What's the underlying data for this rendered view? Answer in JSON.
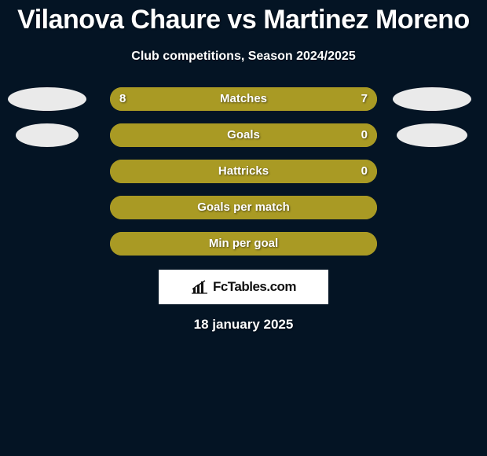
{
  "title": "Vilanova Chaure vs Martinez Moreno",
  "subtitle": "Club competitions, Season 2024/2025",
  "date": "18 january 2025",
  "logo_text": "FcTables.com",
  "colors": {
    "background": "#041424",
    "bar_fill": "#a99a24",
    "bar_track": "#a99a24",
    "ellipse_fill": "#eaeaea",
    "white": "#ffffff"
  },
  "rows": [
    {
      "label": "Matches",
      "left_value": "8",
      "right_value": "7",
      "left_pct": 53,
      "right_pct": 47,
      "show_values": true,
      "show_ellipses": true,
      "ellipse_left_w": 100,
      "ellipse_right_w": 100,
      "track_color": "#a99a24",
      "left_fill_color": "#a99a24",
      "right_fill_color": "#a99a24"
    },
    {
      "label": "Goals",
      "left_value": "",
      "right_value": "0",
      "left_pct": 100,
      "right_pct": 0,
      "show_values": true,
      "show_ellipses": true,
      "ellipse_left_w": 80,
      "ellipse_right_w": 90,
      "track_color": "#a99a24",
      "left_fill_color": "#a99a24",
      "right_fill_color": "#a99a24"
    },
    {
      "label": "Hattricks",
      "left_value": "",
      "right_value": "0",
      "left_pct": 100,
      "right_pct": 0,
      "show_values": true,
      "show_ellipses": false,
      "track_color": "#a99a24",
      "left_fill_color": "#a99a24",
      "right_fill_color": "#a99a24"
    },
    {
      "label": "Goals per match",
      "left_value": "",
      "right_value": "",
      "left_pct": 100,
      "right_pct": 0,
      "show_values": false,
      "show_ellipses": false,
      "track_color": "#a99a24",
      "left_fill_color": "#a99a24",
      "right_fill_color": "#a99a24"
    },
    {
      "label": "Min per goal",
      "left_value": "",
      "right_value": "",
      "left_pct": 100,
      "right_pct": 0,
      "show_values": false,
      "show_ellipses": false,
      "track_color": "#a99a24",
      "left_fill_color": "#a99a24",
      "right_fill_color": "#a99a24"
    }
  ]
}
